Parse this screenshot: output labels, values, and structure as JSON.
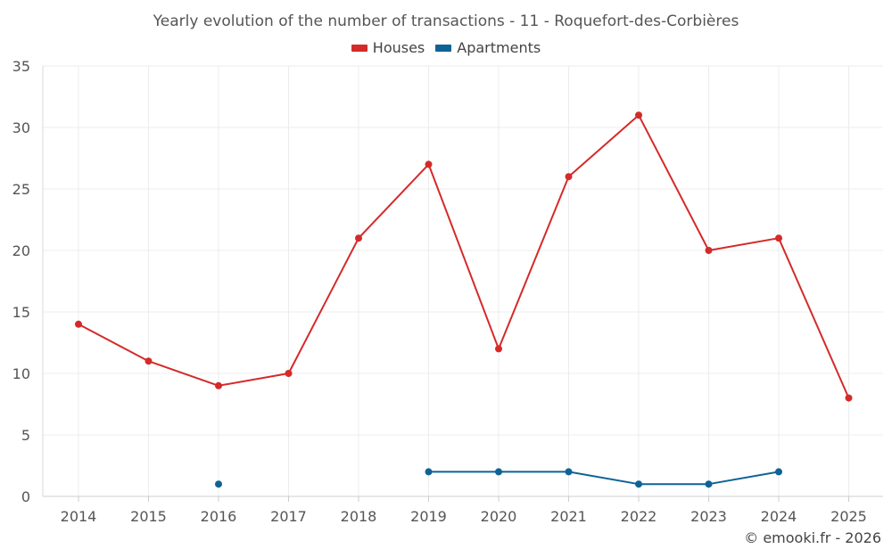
{
  "chart_data": {
    "type": "line",
    "title": "Yearly evolution of the number of transactions - 11 - Roquefort-des-Corbières",
    "xlabel": "",
    "ylabel": "",
    "categories": [
      "2014",
      "2015",
      "2016",
      "2017",
      "2018",
      "2019",
      "2020",
      "2021",
      "2022",
      "2023",
      "2024",
      "2025"
    ],
    "ylim": [
      0,
      35
    ],
    "yticks": [
      0,
      5,
      10,
      15,
      20,
      25,
      30,
      35
    ],
    "grid": true,
    "legend_position": "top-center",
    "series": [
      {
        "name": "Houses",
        "color": "#d42a2a",
        "values": [
          14,
          11,
          9,
          10,
          21,
          27,
          12,
          26,
          31,
          20,
          21,
          8
        ]
      },
      {
        "name": "Apartments",
        "color": "#0e6396",
        "values": [
          null,
          null,
          1,
          null,
          null,
          2,
          2,
          2,
          1,
          1,
          2,
          null
        ]
      }
    ]
  },
  "credit": "© emooki.fr - 2026"
}
